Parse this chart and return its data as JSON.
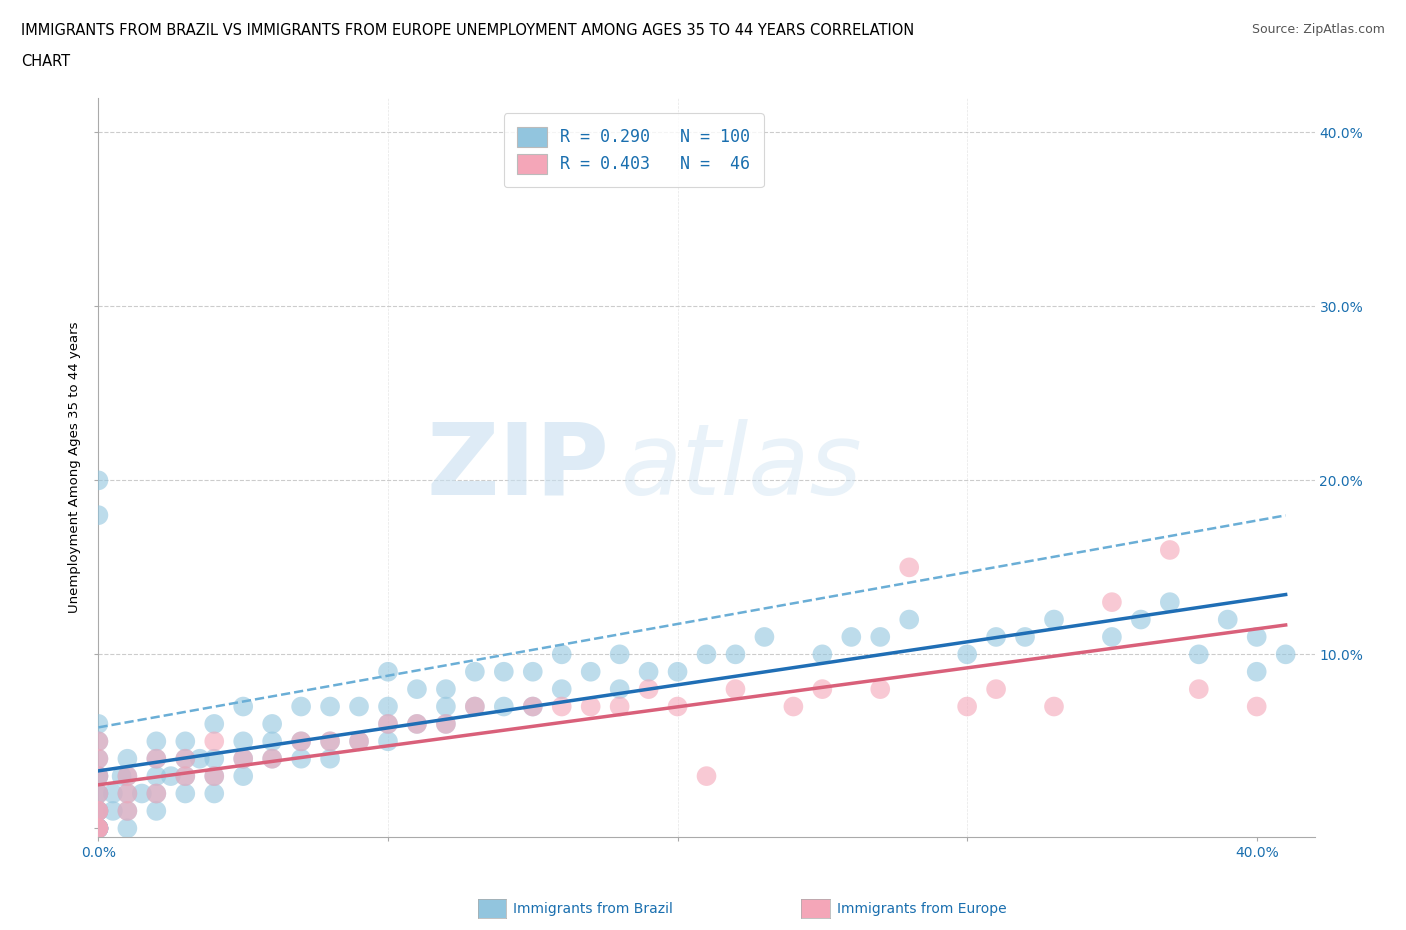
{
  "title_line1": "IMMIGRANTS FROM BRAZIL VS IMMIGRANTS FROM EUROPE UNEMPLOYMENT AMONG AGES 35 TO 44 YEARS CORRELATION",
  "title_line2": "CHART",
  "source_text": "Source: ZipAtlas.com",
  "watermark_zip": "ZIP",
  "watermark_atlas": "atlas",
  "ylabel": "Unemployment Among Ages 35 to 44 years",
  "xlim": [
    0.0,
    0.42
  ],
  "ylim": [
    -0.005,
    0.42
  ],
  "brazil_R": 0.29,
  "brazil_N": 100,
  "europe_R": 0.403,
  "europe_N": 46,
  "brazil_color": "#92C5DE",
  "europe_color": "#F4A6B8",
  "brazil_line_color": "#1f6eb5",
  "europe_line_color": "#D9607A",
  "brazil_dash_color": "#6aaed6",
  "legend_text_color": "#1a6faf",
  "tick_label_color": "#1a6faf",
  "grid_color": "#cccccc",
  "background_color": "#ffffff",
  "figsize": [
    14.06,
    9.3
  ],
  "dpi": 100,
  "brazil_scatter_x": [
    0.0,
    0.0,
    0.0,
    0.0,
    0.0,
    0.0,
    0.0,
    0.0,
    0.0,
    0.0,
    0.0,
    0.0,
    0.0,
    0.0,
    0.0,
    0.0,
    0.0,
    0.0,
    0.0,
    0.0,
    0.005,
    0.005,
    0.008,
    0.01,
    0.01,
    0.01,
    0.01,
    0.01,
    0.015,
    0.02,
    0.02,
    0.02,
    0.02,
    0.02,
    0.025,
    0.03,
    0.03,
    0.03,
    0.03,
    0.035,
    0.04,
    0.04,
    0.04,
    0.04,
    0.05,
    0.05,
    0.05,
    0.05,
    0.06,
    0.06,
    0.06,
    0.07,
    0.07,
    0.07,
    0.08,
    0.08,
    0.08,
    0.09,
    0.09,
    0.1,
    0.1,
    0.1,
    0.1,
    0.11,
    0.11,
    0.12,
    0.12,
    0.12,
    0.13,
    0.13,
    0.14,
    0.14,
    0.15,
    0.15,
    0.16,
    0.16,
    0.17,
    0.18,
    0.18,
    0.19,
    0.2,
    0.21,
    0.22,
    0.23,
    0.25,
    0.26,
    0.27,
    0.28,
    0.3,
    0.31,
    0.32,
    0.33,
    0.35,
    0.36,
    0.37,
    0.38,
    0.39,
    0.4,
    0.4,
    0.41
  ],
  "brazil_scatter_y": [
    0.0,
    0.0,
    0.0,
    0.0,
    0.0,
    0.0,
    0.0,
    0.0,
    0.01,
    0.01,
    0.01,
    0.02,
    0.02,
    0.03,
    0.03,
    0.04,
    0.05,
    0.06,
    0.2,
    0.18,
    0.01,
    0.02,
    0.03,
    0.0,
    0.01,
    0.02,
    0.03,
    0.04,
    0.02,
    0.01,
    0.02,
    0.03,
    0.04,
    0.05,
    0.03,
    0.02,
    0.03,
    0.04,
    0.05,
    0.04,
    0.02,
    0.03,
    0.04,
    0.06,
    0.03,
    0.04,
    0.05,
    0.07,
    0.04,
    0.05,
    0.06,
    0.04,
    0.05,
    0.07,
    0.04,
    0.05,
    0.07,
    0.05,
    0.07,
    0.05,
    0.06,
    0.07,
    0.09,
    0.06,
    0.08,
    0.06,
    0.07,
    0.08,
    0.07,
    0.09,
    0.07,
    0.09,
    0.07,
    0.09,
    0.08,
    0.1,
    0.09,
    0.08,
    0.1,
    0.09,
    0.09,
    0.1,
    0.1,
    0.11,
    0.1,
    0.11,
    0.11,
    0.12,
    0.1,
    0.11,
    0.11,
    0.12,
    0.11,
    0.12,
    0.13,
    0.1,
    0.12,
    0.09,
    0.11,
    0.1
  ],
  "europe_scatter_x": [
    0.0,
    0.0,
    0.0,
    0.0,
    0.0,
    0.0,
    0.0,
    0.0,
    0.0,
    0.01,
    0.01,
    0.01,
    0.02,
    0.02,
    0.03,
    0.03,
    0.04,
    0.04,
    0.05,
    0.06,
    0.07,
    0.08,
    0.09,
    0.1,
    0.11,
    0.12,
    0.13,
    0.15,
    0.16,
    0.17,
    0.18,
    0.19,
    0.2,
    0.21,
    0.22,
    0.24,
    0.25,
    0.27,
    0.28,
    0.3,
    0.31,
    0.33,
    0.35,
    0.37,
    0.38,
    0.4
  ],
  "europe_scatter_y": [
    0.0,
    0.0,
    0.0,
    0.01,
    0.01,
    0.02,
    0.03,
    0.04,
    0.05,
    0.01,
    0.02,
    0.03,
    0.02,
    0.04,
    0.03,
    0.04,
    0.03,
    0.05,
    0.04,
    0.04,
    0.05,
    0.05,
    0.05,
    0.06,
    0.06,
    0.06,
    0.07,
    0.07,
    0.07,
    0.07,
    0.07,
    0.08,
    0.07,
    0.03,
    0.08,
    0.07,
    0.08,
    0.08,
    0.15,
    0.07,
    0.08,
    0.07,
    0.13,
    0.16,
    0.08,
    0.07
  ]
}
